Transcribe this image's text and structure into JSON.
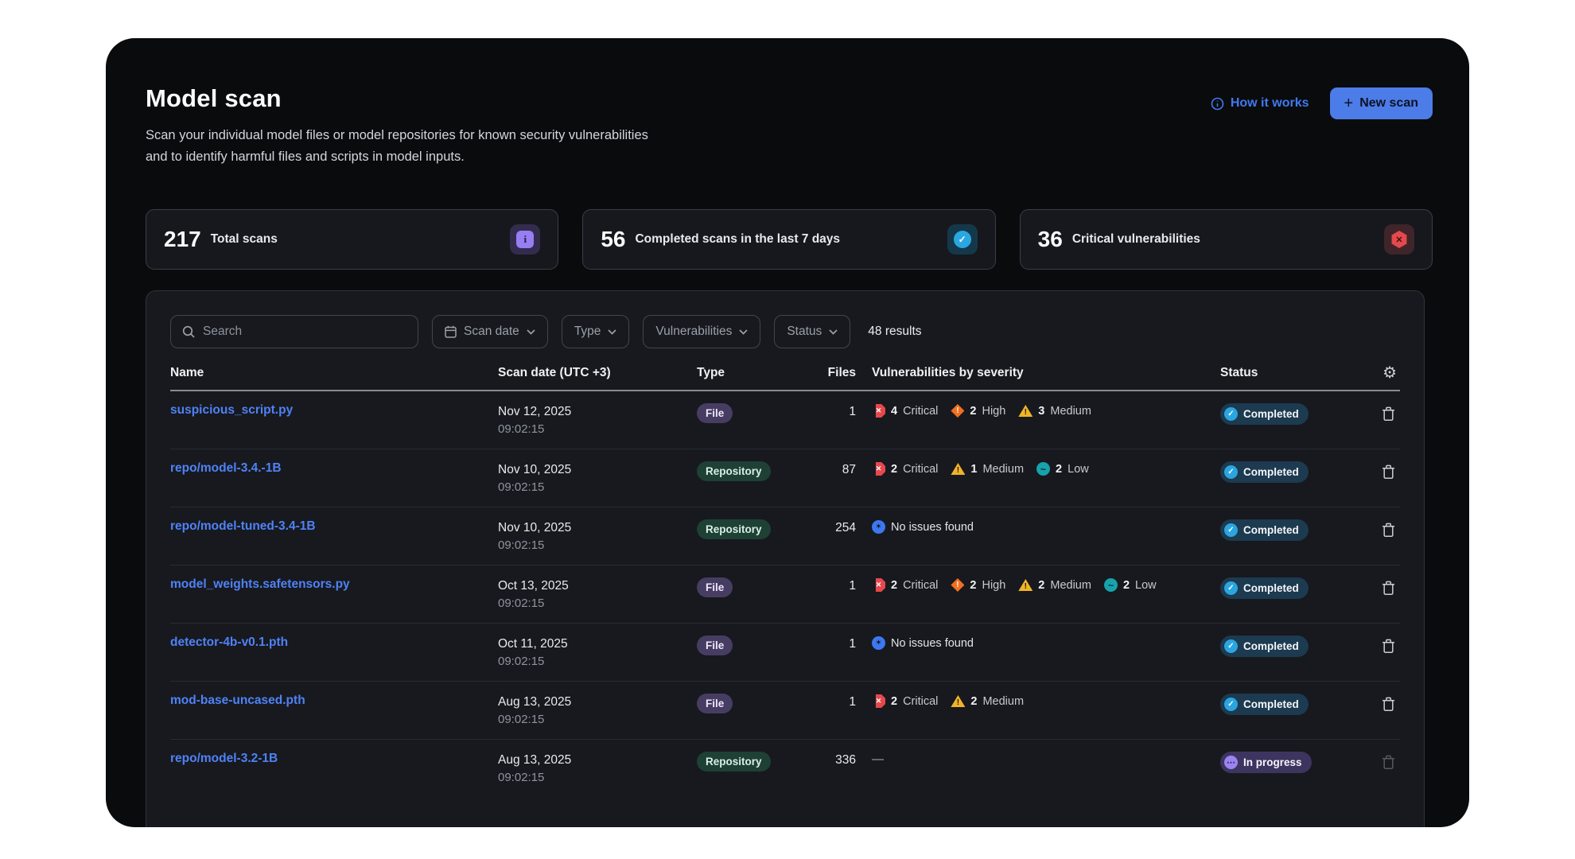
{
  "header": {
    "title": "Model scan",
    "description_line1": "Scan your individual model files or model repositories for known security vulnerabilities",
    "description_line2": "and to identify harmful files and scripts in model inputs.",
    "how_it_works_label": "How it works",
    "new_scan_label": "New scan",
    "plus_glyph": "+"
  },
  "stats": [
    {
      "value": "217",
      "label": "Total scans",
      "icon": "info-file-icon"
    },
    {
      "value": "56",
      "label": "Completed scans in the last 7 days",
      "icon": "check-circle-icon"
    },
    {
      "value": "36",
      "label": "Critical vulnerabilities",
      "icon": "critical-hexagon-icon"
    }
  ],
  "filters": {
    "search_placeholder": "Search",
    "scan_date_label": "Scan date",
    "type_label": "Type",
    "vulnerabilities_label": "Vulnerabilities",
    "status_label": "Status",
    "results_text": "48 results"
  },
  "table": {
    "columns": {
      "name": "Name",
      "scan_date": "Scan date (UTC +3)",
      "type": "Type",
      "files": "Files",
      "vulnerabilities": "Vulnerabilities by severity",
      "status": "Status"
    },
    "rows": [
      {
        "name": "suspicious_script.py",
        "date": "Nov 12, 2025",
        "time": "09:02:15",
        "type": "File",
        "files": "1",
        "vulns": [
          {
            "severity": "critical",
            "count": "4",
            "label": "Critical"
          },
          {
            "severity": "high",
            "count": "2",
            "label": "High"
          },
          {
            "severity": "medium",
            "count": "3",
            "label": "Medium"
          }
        ],
        "status": {
          "label": "Completed",
          "kind": "completed"
        }
      },
      {
        "name": "repo/model-3.4.-1B",
        "date": "Nov 10, 2025",
        "time": "09:02:15",
        "type": "Repository",
        "files": "87",
        "vulns": [
          {
            "severity": "critical",
            "count": "2",
            "label": "Critical"
          },
          {
            "severity": "medium",
            "count": "1",
            "label": "Medium"
          },
          {
            "severity": "low",
            "count": "2",
            "label": "Low"
          }
        ],
        "status": {
          "label": "Completed",
          "kind": "completed"
        }
      },
      {
        "name": "repo/model-tuned-3.4-1B",
        "date": "Nov 10, 2025",
        "time": "09:02:15",
        "type": "Repository",
        "files": "254",
        "no_issues": "No issues found",
        "status": {
          "label": "Completed",
          "kind": "completed"
        }
      },
      {
        "name": "model_weights.safetensors.py",
        "date": "Oct 13, 2025",
        "time": "09:02:15",
        "type": "File",
        "files": "1",
        "vulns": [
          {
            "severity": "critical",
            "count": "2",
            "label": "Critical"
          },
          {
            "severity": "high",
            "count": "2",
            "label": "High"
          },
          {
            "severity": "medium",
            "count": "2",
            "label": "Medium"
          },
          {
            "severity": "low",
            "count": "2",
            "label": "Low"
          }
        ],
        "status": {
          "label": "Completed",
          "kind": "completed"
        }
      },
      {
        "name": "detector-4b-v0.1.pth",
        "date": "Oct 11, 2025",
        "time": "09:02:15",
        "type": "File",
        "files": "1",
        "no_issues": "No issues found",
        "status": {
          "label": "Completed",
          "kind": "completed"
        }
      },
      {
        "name": "mod-base-uncased.pth",
        "date": "Aug 13, 2025",
        "time": "09:02:15",
        "type": "File",
        "files": "1",
        "vulns": [
          {
            "severity": "critical",
            "count": "2",
            "label": "Critical"
          },
          {
            "severity": "medium",
            "count": "2",
            "label": "Medium"
          }
        ],
        "status": {
          "label": "Completed",
          "kind": "completed"
        }
      },
      {
        "name": "repo/model-3.2-1B",
        "date": "Aug 13, 2025",
        "time": "09:02:15",
        "type": "Repository",
        "files": "336",
        "empty": "—",
        "status": {
          "label": "In progress",
          "kind": "in-progress"
        }
      }
    ]
  },
  "icons": {
    "search": "magnifier-icon",
    "calendar": "calendar-icon",
    "chevron": "chevron-down-icon",
    "info": "info-circle-icon",
    "gear": "gear-icon",
    "trash": "trash-icon",
    "critical": "octagon-x-icon",
    "high": "diamond-exclaim-icon",
    "medium": "triangle-exclaim-icon",
    "low": "circle-tilde-icon",
    "no_issues": "circle-star-icon",
    "completed": "circle-check-icon",
    "in_progress": "circle-dots-icon"
  },
  "colors": {
    "accent_blue": "#4c7ce8",
    "link_blue": "#4f82f7",
    "critical_red": "#e5484d",
    "high_orange": "#f1701f",
    "medium_amber": "#f0b429",
    "low_teal": "#17a2ac",
    "no_issues_blue": "#3d77f2",
    "completed_cyan": "#2ba5e0",
    "in_progress_purple": "#9b84f0",
    "panel_bg": "#17191e",
    "page_bg": "#0a0b0d"
  }
}
